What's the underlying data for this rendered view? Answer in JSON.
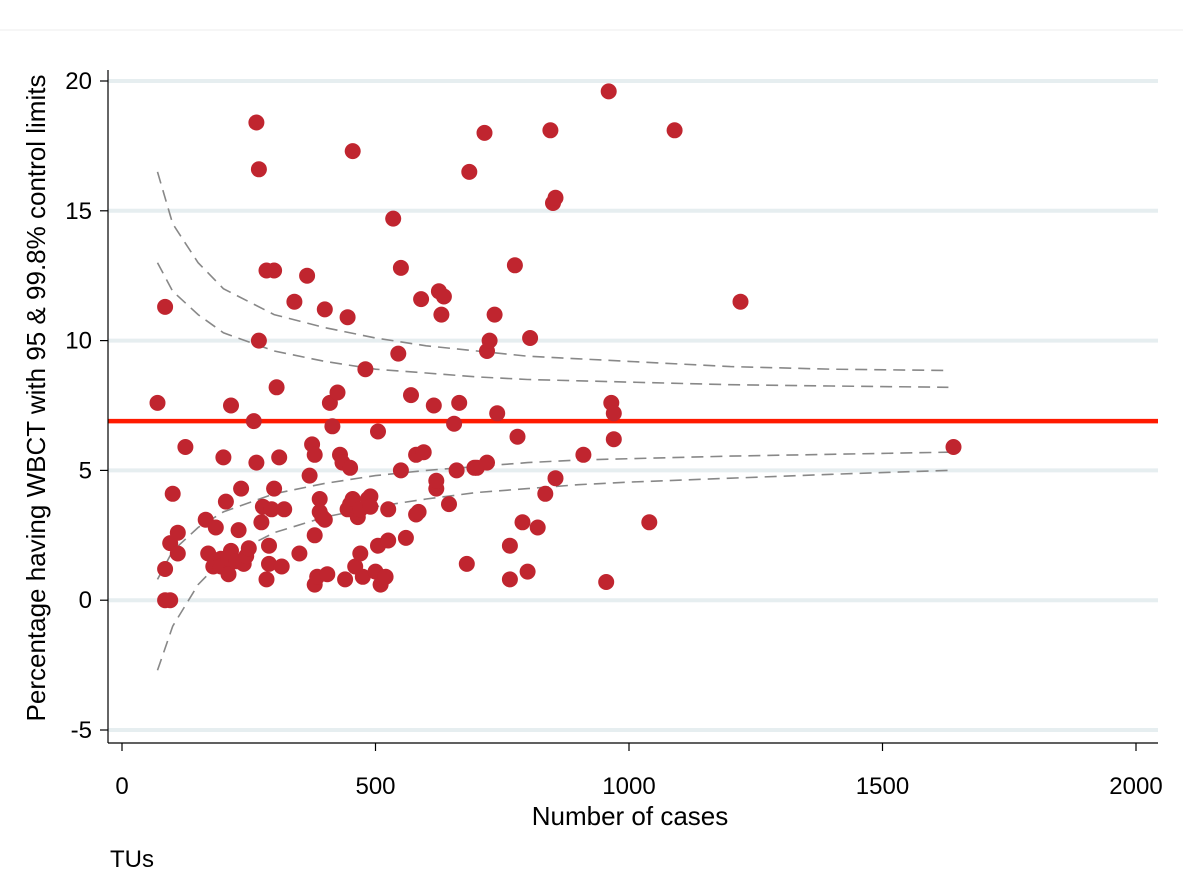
{
  "chart_data": {
    "type": "scatter",
    "title": "",
    "xlabel": "Number of cases",
    "ylabel": "Percentage having WBCT with 95 & 99.8% control limits",
    "note": "TUs",
    "xlim": [
      0,
      2000
    ],
    "ylim": [
      -5,
      20
    ],
    "xticks": [
      "0",
      "500",
      "1000",
      "1500",
      "2000"
    ],
    "yticks": [
      "-5",
      "0",
      "5",
      "10",
      "15",
      "20"
    ],
    "xtick_values": [
      0,
      500,
      1000,
      1500,
      2000
    ],
    "ytick_values": [
      -5,
      0,
      5,
      10,
      15,
      20
    ],
    "grid": "horizontal",
    "colors": {
      "points": "#c0252f",
      "target_line": "#ff1a00",
      "limits": "#888888",
      "grid": "#e6eef0"
    },
    "target_line": 6.9,
    "control_limits": {
      "upper_998": [
        [
          70,
          16.5
        ],
        [
          100,
          14.5
        ],
        [
          150,
          13.0
        ],
        [
          200,
          12.0
        ],
        [
          300,
          11.0
        ],
        [
          400,
          10.5
        ],
        [
          500,
          10.1
        ],
        [
          600,
          9.8
        ],
        [
          700,
          9.6
        ],
        [
          800,
          9.4
        ],
        [
          900,
          9.3
        ],
        [
          1000,
          9.2
        ],
        [
          1200,
          9.0
        ],
        [
          1400,
          8.9
        ],
        [
          1630,
          8.85
        ]
      ],
      "upper_95": [
        [
          70,
          13.0
        ],
        [
          100,
          11.9
        ],
        [
          150,
          11.0
        ],
        [
          200,
          10.3
        ],
        [
          300,
          9.6
        ],
        [
          400,
          9.2
        ],
        [
          500,
          8.9
        ],
        [
          600,
          8.75
        ],
        [
          700,
          8.6
        ],
        [
          800,
          8.5
        ],
        [
          900,
          8.45
        ],
        [
          1000,
          8.4
        ],
        [
          1200,
          8.3
        ],
        [
          1400,
          8.25
        ],
        [
          1630,
          8.2
        ]
      ],
      "lower_95": [
        [
          70,
          0.8
        ],
        [
          100,
          1.9
        ],
        [
          150,
          2.8
        ],
        [
          200,
          3.4
        ],
        [
          300,
          4.1
        ],
        [
          400,
          4.5
        ],
        [
          500,
          4.8
        ],
        [
          600,
          5.0
        ],
        [
          700,
          5.15
        ],
        [
          800,
          5.3
        ],
        [
          900,
          5.4
        ],
        [
          1000,
          5.45
        ],
        [
          1200,
          5.55
        ],
        [
          1400,
          5.62
        ],
        [
          1630,
          5.7
        ]
      ],
      "lower_998": [
        [
          70,
          -2.7
        ],
        [
          100,
          -1.0
        ],
        [
          150,
          0.6
        ],
        [
          200,
          1.6
        ],
        [
          300,
          2.6
        ],
        [
          400,
          3.2
        ],
        [
          500,
          3.6
        ],
        [
          600,
          3.9
        ],
        [
          700,
          4.15
        ],
        [
          800,
          4.3
        ],
        [
          900,
          4.45
        ],
        [
          1000,
          4.55
        ],
        [
          1200,
          4.7
        ],
        [
          1400,
          4.85
        ],
        [
          1630,
          5.0
        ]
      ]
    },
    "points": [
      [
        70,
        7.6
      ],
      [
        85,
        11.3
      ],
      [
        85,
        0
      ],
      [
        95,
        0
      ],
      [
        85,
        1.2
      ],
      [
        95,
        2.2
      ],
      [
        100,
        4.1
      ],
      [
        110,
        2.6
      ],
      [
        110,
        1.8
      ],
      [
        125,
        5.9
      ],
      [
        165,
        3.1
      ],
      [
        170,
        1.8
      ],
      [
        180,
        1.3
      ],
      [
        185,
        1.5
      ],
      [
        185,
        2.8
      ],
      [
        195,
        1.6
      ],
      [
        195,
        1.3
      ],
      [
        200,
        5.5
      ],
      [
        205,
        3.8
      ],
      [
        210,
        1.0
      ],
      [
        210,
        1.6
      ],
      [
        215,
        7.5
      ],
      [
        215,
        1.9
      ],
      [
        225,
        1.5
      ],
      [
        230,
        2.7
      ],
      [
        235,
        4.3
      ],
      [
        240,
        1.4
      ],
      [
        245,
        1.7
      ],
      [
        250,
        2.0
      ],
      [
        260,
        6.9
      ],
      [
        265,
        5.3
      ],
      [
        265,
        18.4
      ],
      [
        270,
        16.6
      ],
      [
        270,
        10.0
      ],
      [
        275,
        3.0
      ],
      [
        278,
        3.6
      ],
      [
        285,
        12.7
      ],
      [
        285,
        0.8
      ],
      [
        290,
        2.1
      ],
      [
        290,
        1.4
      ],
      [
        295,
        3.5
      ],
      [
        300,
        4.3
      ],
      [
        300,
        12.7
      ],
      [
        305,
        8.2
      ],
      [
        310,
        5.5
      ],
      [
        315,
        1.3
      ],
      [
        320,
        3.5
      ],
      [
        340,
        11.5
      ],
      [
        350,
        1.8
      ],
      [
        365,
        12.5
      ],
      [
        370,
        4.8
      ],
      [
        375,
        6.0
      ],
      [
        380,
        5.6
      ],
      [
        380,
        2.5
      ],
      [
        380,
        0.6
      ],
      [
        385,
        0.9
      ],
      [
        390,
        3.9
      ],
      [
        390,
        3.4
      ],
      [
        395,
        3.2
      ],
      [
        400,
        3.1
      ],
      [
        400,
        11.2
      ],
      [
        405,
        1.0
      ],
      [
        410,
        7.6
      ],
      [
        415,
        6.7
      ],
      [
        425,
        8.0
      ],
      [
        430,
        5.6
      ],
      [
        435,
        5.3
      ],
      [
        440,
        0.8
      ],
      [
        445,
        3.5
      ],
      [
        445,
        10.9
      ],
      [
        450,
        5.1
      ],
      [
        450,
        3.7
      ],
      [
        455,
        3.9
      ],
      [
        455,
        17.3
      ],
      [
        460,
        1.3
      ],
      [
        465,
        3.2
      ],
      [
        470,
        3.5
      ],
      [
        470,
        1.8
      ],
      [
        475,
        0.9
      ],
      [
        480,
        8.9
      ],
      [
        485,
        3.9
      ],
      [
        490,
        4.0
      ],
      [
        490,
        3.6
      ],
      [
        500,
        1.1
      ],
      [
        505,
        2.1
      ],
      [
        505,
        6.5
      ],
      [
        510,
        0.6
      ],
      [
        520,
        0.9
      ],
      [
        525,
        3.5
      ],
      [
        525,
        2.3
      ],
      [
        535,
        14.7
      ],
      [
        545,
        9.5
      ],
      [
        550,
        12.8
      ],
      [
        550,
        5.0
      ],
      [
        560,
        2.4
      ],
      [
        570,
        7.9
      ],
      [
        580,
        3.3
      ],
      [
        580,
        5.6
      ],
      [
        585,
        3.4
      ],
      [
        590,
        11.6
      ],
      [
        595,
        5.7
      ],
      [
        615,
        7.5
      ],
      [
        620,
        4.3
      ],
      [
        620,
        4.6
      ],
      [
        625,
        11.9
      ],
      [
        630,
        11.0
      ],
      [
        635,
        11.7
      ],
      [
        645,
        3.7
      ],
      [
        655,
        6.8
      ],
      [
        660,
        5.0
      ],
      [
        665,
        7.6
      ],
      [
        680,
        1.4
      ],
      [
        685,
        16.5
      ],
      [
        695,
        5.1
      ],
      [
        700,
        5.1
      ],
      [
        715,
        18.0
      ],
      [
        720,
        5.3
      ],
      [
        720,
        9.6
      ],
      [
        725,
        10.0
      ],
      [
        735,
        11.0
      ],
      [
        740,
        7.2
      ],
      [
        765,
        2.1
      ],
      [
        765,
        0.8
      ],
      [
        775,
        12.9
      ],
      [
        780,
        6.3
      ],
      [
        790,
        3.0
      ],
      [
        800,
        1.1
      ],
      [
        805,
        10.1
      ],
      [
        820,
        2.8
      ],
      [
        835,
        4.1
      ],
      [
        845,
        18.1
      ],
      [
        850,
        15.3
      ],
      [
        855,
        4.7
      ],
      [
        855,
        15.5
      ],
      [
        910,
        5.6
      ],
      [
        955,
        0.7
      ],
      [
        960,
        19.6
      ],
      [
        965,
        7.6
      ],
      [
        970,
        6.2
      ],
      [
        970,
        7.2
      ],
      [
        1040,
        3.0
      ],
      [
        1090,
        18.1
      ],
      [
        1220,
        11.5
      ],
      [
        1640,
        5.9
      ]
    ]
  }
}
